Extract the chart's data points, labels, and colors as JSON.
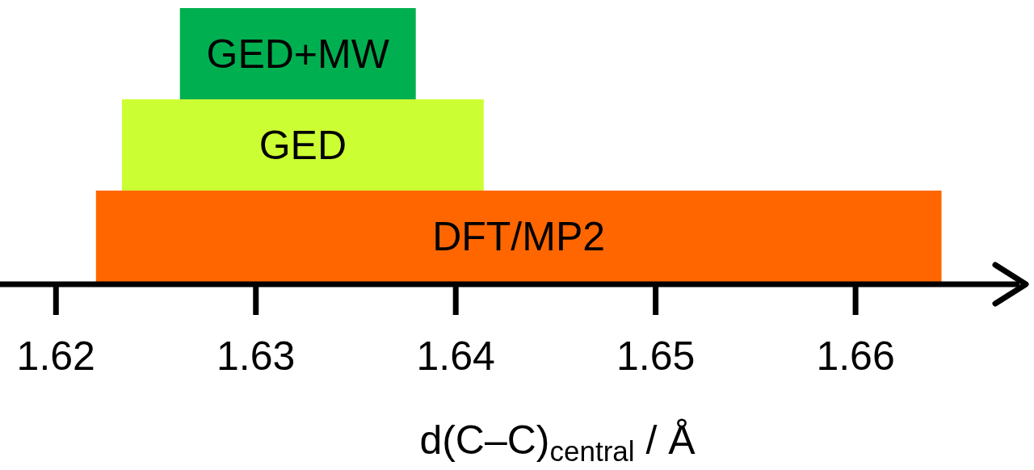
{
  "chart_data": {
    "type": "bar",
    "orientation": "horizontal",
    "categories": [
      "GED+MW",
      "GED",
      "DFT/MP2"
    ],
    "base": [
      1.6262,
      1.6233,
      1.622
    ],
    "values": [
      0.0118,
      0.0181,
      0.0423
    ],
    "colors": [
      "#00b050",
      "#ccff33",
      "#ff6600"
    ],
    "xlim": [
      1.6172,
      1.6682
    ],
    "xticks": [
      1.62,
      1.63,
      1.64,
      1.65,
      1.66
    ],
    "xlabel": "d(C–C)$_{central}$ / Å"
  }
}
